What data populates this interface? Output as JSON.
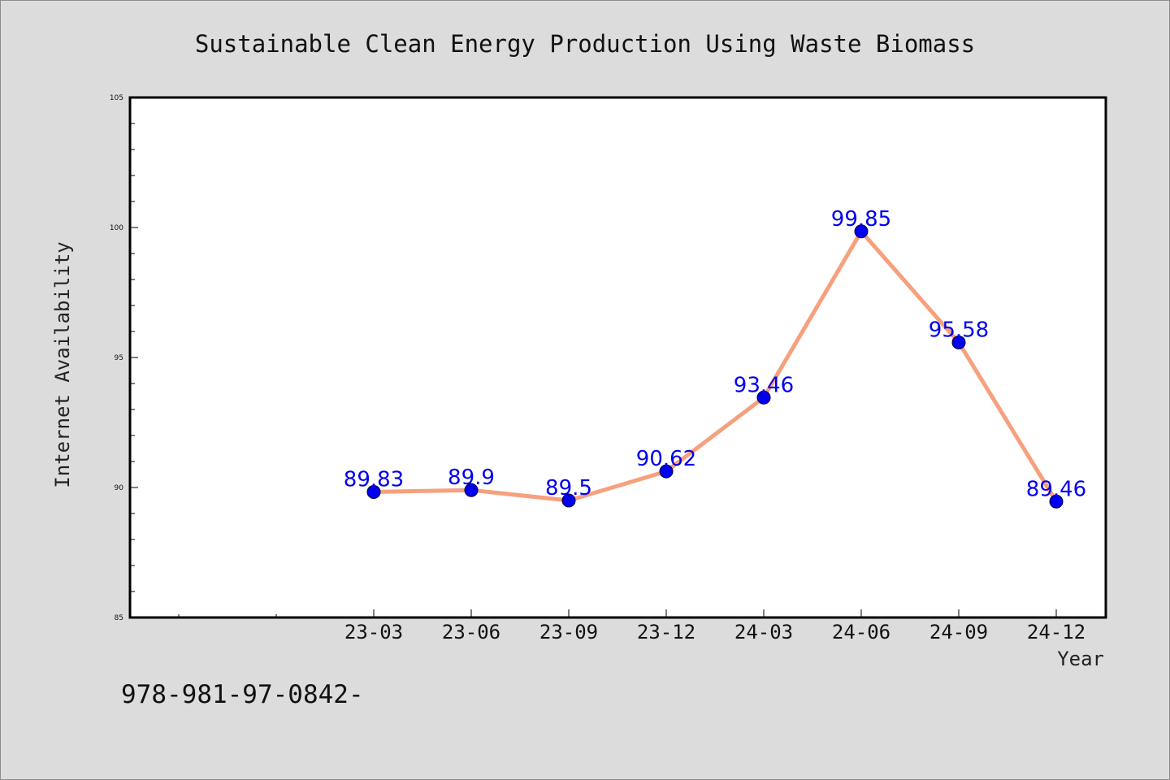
{
  "colors": {
    "background": "#dcdcdc",
    "plot_background": "#ffffff",
    "line": "#f6a07e",
    "marker": "#0000ee",
    "label": "#0000ee",
    "axis": "#000000"
  },
  "footer": {
    "text": "978-981-97-0842-"
  },
  "chart_data": {
    "type": "line",
    "title": "Sustainable Clean Energy Production Using Waste Biomass",
    "xlabel": "Year",
    "ylabel": "Internet Availability",
    "categories": [
      "23-03",
      "23-06",
      "23-09",
      "23-12",
      "24-03",
      "24-06",
      "24-09",
      "24-12"
    ],
    "series": [
      {
        "values": [
          89.83,
          89.9,
          89.5,
          90.62,
          93.46,
          99.85,
          95.58,
          89.46
        ],
        "labels": [
          "89.83",
          "89.9",
          "89.5",
          "90.62",
          "93.46",
          "99.85",
          "95.58",
          "89.46"
        ]
      }
    ],
    "ylim": [
      85,
      105
    ],
    "yticks": [
      "85",
      "90",
      "95",
      "100",
      "105"
    ],
    "grid": false,
    "legend": "none"
  }
}
